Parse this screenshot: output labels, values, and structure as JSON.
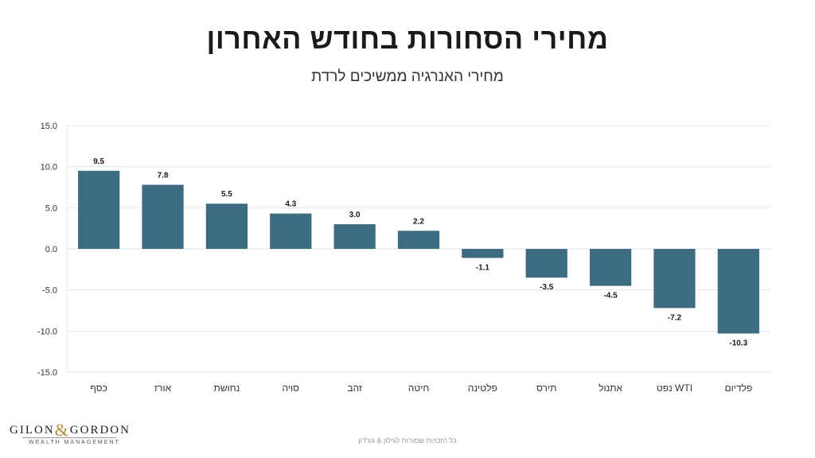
{
  "header": {
    "title": "מחירי הסחורות בחודש האחרון",
    "subtitle": "מחירי האנרגיה ממשיכים לרדת"
  },
  "logo": {
    "name_left": "GILON",
    "ampersand": "&",
    "name_right": "GORDON",
    "tagline": "WEALTH MANAGEMENT"
  },
  "footer": {
    "text": "כל הזכויות שמורות לגילון & גורדון"
  },
  "colors": {
    "bar": "#3d6b82",
    "grid": "#e6e6e6",
    "axis_text": "#333333"
  },
  "chart_data": {
    "type": "bar",
    "categories": [
      "כסף",
      "אורז",
      "נחושת",
      "סויה",
      "זהב",
      "חיטה",
      "פלטינה",
      "תירס",
      "אתנול",
      "WTI נפט",
      "פלדיום"
    ],
    "values": [
      9.5,
      7.8,
      5.5,
      4.3,
      3.0,
      2.2,
      -1.1,
      -3.5,
      -4.5,
      -7.2,
      -10.3
    ],
    "data_labels": [
      "9.5",
      "7.8",
      "5.5",
      "4.3",
      "3.0",
      "2.2",
      "-1.1",
      "-3.5",
      "-4.5",
      "-7.2",
      "-10.3"
    ],
    "ylim": [
      -15,
      15
    ],
    "yticks": [
      15,
      10,
      5,
      0,
      -5,
      -10,
      -15
    ],
    "ytick_labels": [
      "15.0",
      "10.0",
      "5.0",
      "0.0",
      "-5.0",
      "-10.0",
      "-15.0"
    ],
    "grid": true,
    "legend": false
  }
}
